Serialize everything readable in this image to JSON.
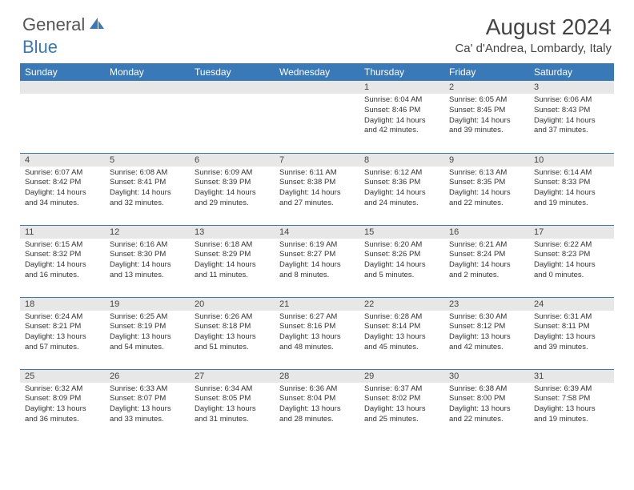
{
  "logo": {
    "text1": "General",
    "text2": "Blue"
  },
  "title": "August 2024",
  "location": "Ca' d'Andrea, Lombardy, Italy",
  "colors": {
    "header_bg": "#3a79b7",
    "header_text": "#ffffff",
    "daynum_bg": "#e7e7e7",
    "border": "#3a79b7",
    "page_bg": "#ffffff",
    "text": "#333333"
  },
  "day_headers": [
    "Sunday",
    "Monday",
    "Tuesday",
    "Wednesday",
    "Thursday",
    "Friday",
    "Saturday"
  ],
  "weeks": [
    [
      {
        "day": "",
        "sunrise": "",
        "sunset": "",
        "daylight": ""
      },
      {
        "day": "",
        "sunrise": "",
        "sunset": "",
        "daylight": ""
      },
      {
        "day": "",
        "sunrise": "",
        "sunset": "",
        "daylight": ""
      },
      {
        "day": "",
        "sunrise": "",
        "sunset": "",
        "daylight": ""
      },
      {
        "day": "1",
        "sunrise": "Sunrise: 6:04 AM",
        "sunset": "Sunset: 8:46 PM",
        "daylight": "Daylight: 14 hours and 42 minutes."
      },
      {
        "day": "2",
        "sunrise": "Sunrise: 6:05 AM",
        "sunset": "Sunset: 8:45 PM",
        "daylight": "Daylight: 14 hours and 39 minutes."
      },
      {
        "day": "3",
        "sunrise": "Sunrise: 6:06 AM",
        "sunset": "Sunset: 8:43 PM",
        "daylight": "Daylight: 14 hours and 37 minutes."
      }
    ],
    [
      {
        "day": "4",
        "sunrise": "Sunrise: 6:07 AM",
        "sunset": "Sunset: 8:42 PM",
        "daylight": "Daylight: 14 hours and 34 minutes."
      },
      {
        "day": "5",
        "sunrise": "Sunrise: 6:08 AM",
        "sunset": "Sunset: 8:41 PM",
        "daylight": "Daylight: 14 hours and 32 minutes."
      },
      {
        "day": "6",
        "sunrise": "Sunrise: 6:09 AM",
        "sunset": "Sunset: 8:39 PM",
        "daylight": "Daylight: 14 hours and 29 minutes."
      },
      {
        "day": "7",
        "sunrise": "Sunrise: 6:11 AM",
        "sunset": "Sunset: 8:38 PM",
        "daylight": "Daylight: 14 hours and 27 minutes."
      },
      {
        "day": "8",
        "sunrise": "Sunrise: 6:12 AM",
        "sunset": "Sunset: 8:36 PM",
        "daylight": "Daylight: 14 hours and 24 minutes."
      },
      {
        "day": "9",
        "sunrise": "Sunrise: 6:13 AM",
        "sunset": "Sunset: 8:35 PM",
        "daylight": "Daylight: 14 hours and 22 minutes."
      },
      {
        "day": "10",
        "sunrise": "Sunrise: 6:14 AM",
        "sunset": "Sunset: 8:33 PM",
        "daylight": "Daylight: 14 hours and 19 minutes."
      }
    ],
    [
      {
        "day": "11",
        "sunrise": "Sunrise: 6:15 AM",
        "sunset": "Sunset: 8:32 PM",
        "daylight": "Daylight: 14 hours and 16 minutes."
      },
      {
        "day": "12",
        "sunrise": "Sunrise: 6:16 AM",
        "sunset": "Sunset: 8:30 PM",
        "daylight": "Daylight: 14 hours and 13 minutes."
      },
      {
        "day": "13",
        "sunrise": "Sunrise: 6:18 AM",
        "sunset": "Sunset: 8:29 PM",
        "daylight": "Daylight: 14 hours and 11 minutes."
      },
      {
        "day": "14",
        "sunrise": "Sunrise: 6:19 AM",
        "sunset": "Sunset: 8:27 PM",
        "daylight": "Daylight: 14 hours and 8 minutes."
      },
      {
        "day": "15",
        "sunrise": "Sunrise: 6:20 AM",
        "sunset": "Sunset: 8:26 PM",
        "daylight": "Daylight: 14 hours and 5 minutes."
      },
      {
        "day": "16",
        "sunrise": "Sunrise: 6:21 AM",
        "sunset": "Sunset: 8:24 PM",
        "daylight": "Daylight: 14 hours and 2 minutes."
      },
      {
        "day": "17",
        "sunrise": "Sunrise: 6:22 AM",
        "sunset": "Sunset: 8:23 PM",
        "daylight": "Daylight: 14 hours and 0 minutes."
      }
    ],
    [
      {
        "day": "18",
        "sunrise": "Sunrise: 6:24 AM",
        "sunset": "Sunset: 8:21 PM",
        "daylight": "Daylight: 13 hours and 57 minutes."
      },
      {
        "day": "19",
        "sunrise": "Sunrise: 6:25 AM",
        "sunset": "Sunset: 8:19 PM",
        "daylight": "Daylight: 13 hours and 54 minutes."
      },
      {
        "day": "20",
        "sunrise": "Sunrise: 6:26 AM",
        "sunset": "Sunset: 8:18 PM",
        "daylight": "Daylight: 13 hours and 51 minutes."
      },
      {
        "day": "21",
        "sunrise": "Sunrise: 6:27 AM",
        "sunset": "Sunset: 8:16 PM",
        "daylight": "Daylight: 13 hours and 48 minutes."
      },
      {
        "day": "22",
        "sunrise": "Sunrise: 6:28 AM",
        "sunset": "Sunset: 8:14 PM",
        "daylight": "Daylight: 13 hours and 45 minutes."
      },
      {
        "day": "23",
        "sunrise": "Sunrise: 6:30 AM",
        "sunset": "Sunset: 8:12 PM",
        "daylight": "Daylight: 13 hours and 42 minutes."
      },
      {
        "day": "24",
        "sunrise": "Sunrise: 6:31 AM",
        "sunset": "Sunset: 8:11 PM",
        "daylight": "Daylight: 13 hours and 39 minutes."
      }
    ],
    [
      {
        "day": "25",
        "sunrise": "Sunrise: 6:32 AM",
        "sunset": "Sunset: 8:09 PM",
        "daylight": "Daylight: 13 hours and 36 minutes."
      },
      {
        "day": "26",
        "sunrise": "Sunrise: 6:33 AM",
        "sunset": "Sunset: 8:07 PM",
        "daylight": "Daylight: 13 hours and 33 minutes."
      },
      {
        "day": "27",
        "sunrise": "Sunrise: 6:34 AM",
        "sunset": "Sunset: 8:05 PM",
        "daylight": "Daylight: 13 hours and 31 minutes."
      },
      {
        "day": "28",
        "sunrise": "Sunrise: 6:36 AM",
        "sunset": "Sunset: 8:04 PM",
        "daylight": "Daylight: 13 hours and 28 minutes."
      },
      {
        "day": "29",
        "sunrise": "Sunrise: 6:37 AM",
        "sunset": "Sunset: 8:02 PM",
        "daylight": "Daylight: 13 hours and 25 minutes."
      },
      {
        "day": "30",
        "sunrise": "Sunrise: 6:38 AM",
        "sunset": "Sunset: 8:00 PM",
        "daylight": "Daylight: 13 hours and 22 minutes."
      },
      {
        "day": "31",
        "sunrise": "Sunrise: 6:39 AM",
        "sunset": "Sunset: 7:58 PM",
        "daylight": "Daylight: 13 hours and 19 minutes."
      }
    ]
  ]
}
